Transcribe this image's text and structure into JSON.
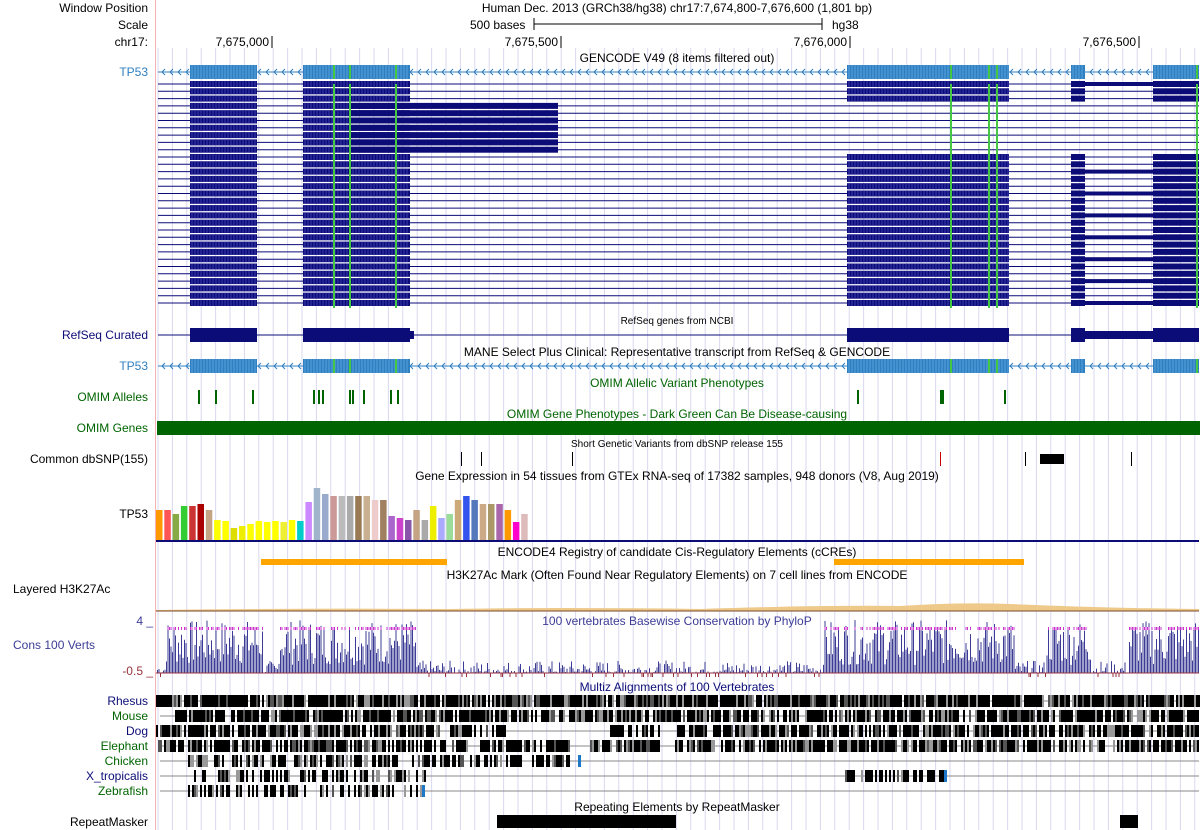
{
  "header": {
    "window_position_label": "Window Position",
    "scale_label": "Scale",
    "chrom_label": "chr17:",
    "assembly_text": "Human Dec. 2013 (GRCh38/hg38)   chr17:7,674,800-7,676,600 (1,801 bp)",
    "scale_text": "500 bases",
    "db_text": "hg38",
    "ruler_ticks": [
      "7,675,000",
      "7,675,500",
      "7,676,000",
      "7,676,500"
    ]
  },
  "tracks": {
    "gencode": {
      "title": "GENCODE V49 (8 items filtered out)",
      "gene_label": "TP53"
    },
    "refseq": {
      "label": "RefSeq Curated",
      "title": "RefSeq genes from NCBI"
    },
    "mane": {
      "label": "TP53",
      "title": "MANE Select Plus Clinical: Representative transcript from RefSeq & GENCODE"
    },
    "omim_alleles": {
      "label": "OMIM Alleles",
      "title": "OMIM Allelic Variant Phenotypes"
    },
    "omim_genes": {
      "label": "OMIM Genes",
      "title": "OMIM Gene Phenotypes - Dark Green Can Be Disease-causing"
    },
    "dbsnp": {
      "label": "Common dbSNP(155)",
      "title": "Short Genetic Variants from dbSNP release 155"
    },
    "gtex": {
      "label": "TP53",
      "title": "Gene Expression in 54 tissues from GTEx RNA-seq of 17382 samples, 948 donors (V8, Aug 2019)"
    },
    "ccre": {
      "title": "ENCODE4 Registry of candidate Cis-Regulatory Elements (cCREs)"
    },
    "h3k27ac": {
      "label": "Layered H3K27Ac",
      "title": "H3K27Ac Mark (Often Found Near Regulatory Elements) on 7 cell lines from ENCODE"
    },
    "phylop": {
      "label": "Cons 100 Verts",
      "title": "100 vertebrates Basewise Conservation by PhyloP",
      "max_label": "4 _",
      "min_label": "-0.5 _"
    },
    "multiz": {
      "title": "Multiz Alignments of 100 Vertebrates",
      "species": [
        "Rhesus",
        "Mouse",
        "Dog",
        "Elephant",
        "Chicken",
        "X_tropicalis",
        "Zebrafish"
      ]
    },
    "rmsk": {
      "label": "RepeatMasker",
      "title": "Repeating Elements by RepeatMasker"
    }
  },
  "colors": {
    "gencode_blue": "#2f7fc1",
    "navy": "#0c0c78",
    "omim_green": "#006400",
    "ccre_orange": "#ffa500",
    "phylop_blue": "#3c3c96",
    "phylop_red": "#96323c",
    "mane_label": "#2f7fc1",
    "species_dark": "#0c0c78",
    "species_green": "#006400"
  }
}
